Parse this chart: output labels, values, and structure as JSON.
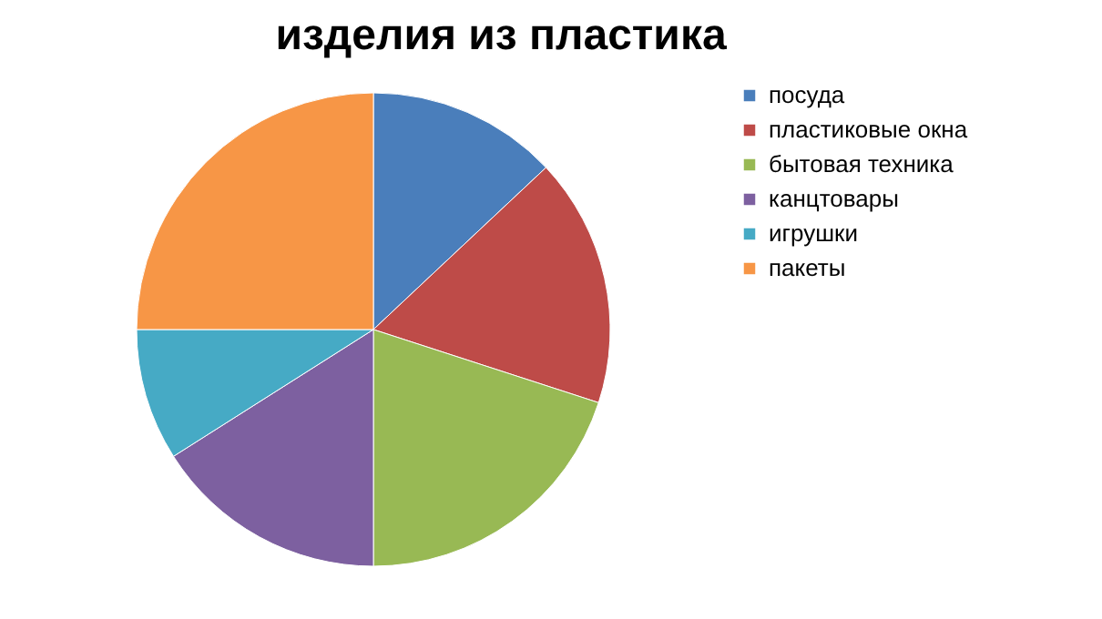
{
  "chart_data": {
    "type": "pie",
    "title": "изделия из пластика",
    "categories": [
      "посуда",
      "пластиковые окна",
      "бытовая техника",
      "канцтовары",
      "игрушки",
      "пакеты"
    ],
    "values": [
      13,
      17,
      20,
      16,
      9,
      25
    ],
    "colors": [
      "#4a7ebb",
      "#be4b48",
      "#98b954",
      "#7d60a0",
      "#46aac5",
      "#f79646"
    ],
    "legend": "right"
  }
}
